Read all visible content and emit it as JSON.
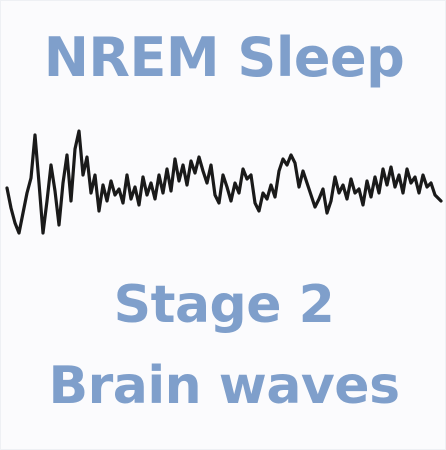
{
  "title": "NREM Sleep",
  "subtitle_line1": "Stage 2",
  "subtitle_line2": "Brain waves",
  "colors": {
    "text": "#7f9fcb",
    "wave": "#1a1a1a",
    "background": "#fbfbfd"
  },
  "icons": [
    "eeg-waveform"
  ]
}
